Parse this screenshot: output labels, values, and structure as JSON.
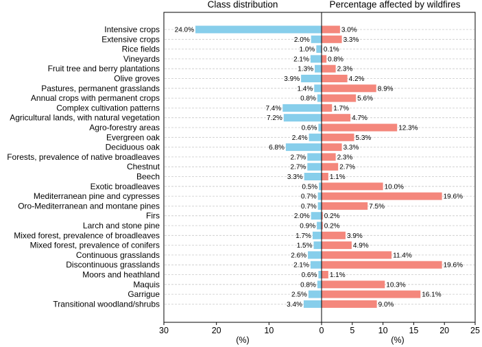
{
  "chart_data": {
    "type": "bar",
    "categories": [
      "Intensive crops",
      "Extensive crops",
      "Rice fields",
      "Vineyards",
      "Fruit tree and berry plantations",
      "Olive groves",
      "Pastures, permanent grasslands",
      "Annual crops with permanent crops",
      "Complex cultivation patterns",
      "Agricultural lands, with natural vegetation",
      "Agro-forestry areas",
      "Evergreen oak",
      "Deciduous oak",
      "Forests, prevalence of native broadleaves",
      "Chestnut",
      "Beech",
      "Exotic broadleaves",
      "Mediterranean pine and cypresses",
      "Oro-Mediterranean and montane pines",
      "Firs",
      "Larch and stone pine",
      "Mixed forest, prevalence of broadleaves",
      "Mixed forest, prevalence of conifers",
      "Continuous grasslands",
      "Discontinuous grasslands",
      "Moors and heathland",
      "Maquis",
      "Garrigue",
      "Transitional woodland/shrubs"
    ],
    "panels": [
      {
        "title": "Class distribution",
        "xlabel": "(%)",
        "xlim": [
          0,
          30
        ],
        "ticks": [
          "30",
          "20",
          "10",
          "0"
        ],
        "direction": "left",
        "color": "#87ceeb",
        "values": [
          24.0,
          2.0,
          1.0,
          2.1,
          1.3,
          3.9,
          1.4,
          0.8,
          7.4,
          7.2,
          0.6,
          2.4,
          6.8,
          2.7,
          2.7,
          3.3,
          0.5,
          0.7,
          0.7,
          2.0,
          0.9,
          1.7,
          1.5,
          2.6,
          2.1,
          0.6,
          0.8,
          2.5,
          3.4
        ],
        "labels": [
          "24.0%",
          "2.0%",
          "1.0%",
          "2.1%",
          "1.3%",
          "3.9%",
          "1.4%",
          "0.8%",
          "7.4%",
          "7.2%",
          "0.6%",
          "2.4%",
          "6.8%",
          "2.7%",
          "2.7%",
          "3.3%",
          "0.5%",
          "0.7%",
          "0.7%",
          "2.0%",
          "0.9%",
          "1.7%",
          "1.5%",
          "2.6%",
          "2.1%",
          "0.6%",
          "0.8%",
          "2.5%",
          "3.4%"
        ]
      },
      {
        "title": "Percentage affected by wildfires",
        "xlabel": "(%)",
        "xlim": [
          0,
          25
        ],
        "ticks": [
          "0",
          "5",
          "10",
          "15",
          "20",
          "25"
        ],
        "direction": "right",
        "color": "#f4877c",
        "values": [
          3.0,
          3.3,
          0.1,
          0.8,
          2.3,
          4.2,
          8.9,
          5.6,
          1.7,
          4.7,
          12.3,
          5.3,
          3.3,
          2.3,
          2.7,
          1.1,
          10.0,
          19.6,
          7.5,
          0.2,
          0.2,
          3.9,
          4.9,
          11.4,
          19.6,
          1.1,
          10.3,
          16.1,
          9.0
        ],
        "labels": [
          "3.0%",
          "3.3%",
          "0.1%",
          "0.8%",
          "2.3%",
          "4.2%",
          "8.9%",
          "5.6%",
          "1.7%",
          "4.7%",
          "12.3%",
          "5.3%",
          "3.3%",
          "2.3%",
          "2.7%",
          "1.1%",
          "10.0%",
          "19.6%",
          "7.5%",
          "0.2%",
          "0.2%",
          "3.9%",
          "4.9%",
          "11.4%",
          "19.6%",
          "1.1%",
          "10.3%",
          "16.1%",
          "9.0%"
        ]
      }
    ],
    "grid": true,
    "gridStyle": "dashed"
  }
}
